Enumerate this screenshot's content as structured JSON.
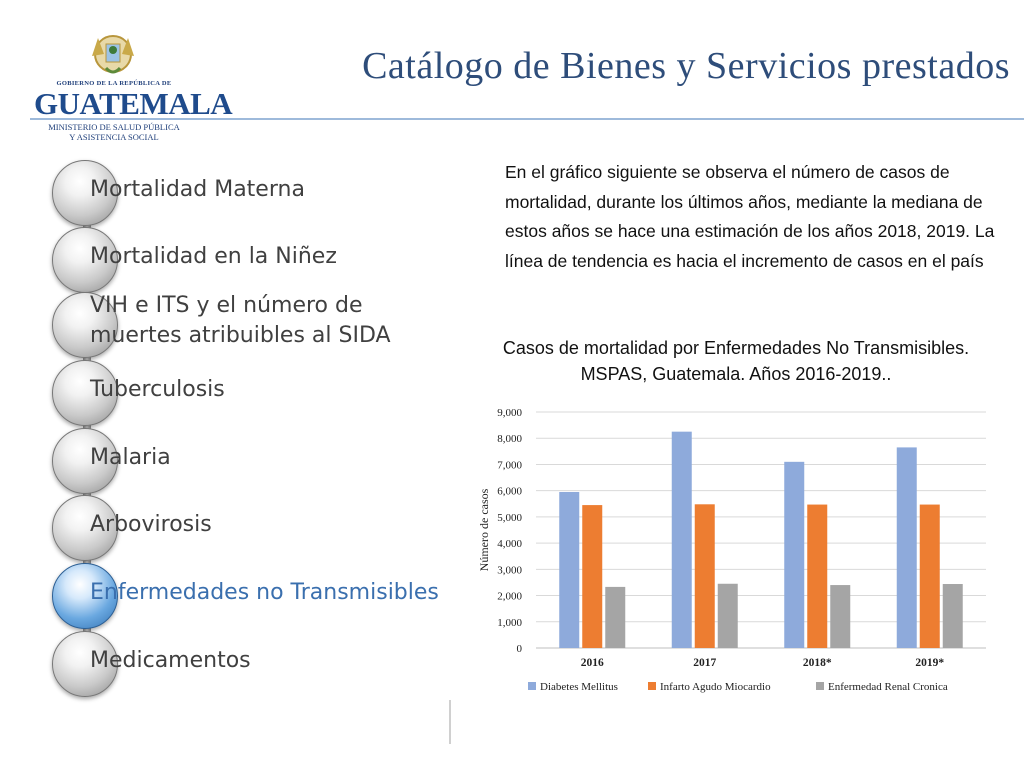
{
  "logo": {
    "government": "GOBIERNO DE LA REPÚBLICA DE",
    "country": "GUATEMALA",
    "ministry_line1": "MINISTERIO DE SALUD PÚBLICA",
    "ministry_line2": "Y ASISTENCIA SOCIAL",
    "seal_icon": "coat-of-arms-icon"
  },
  "title": "Catálogo de Bienes y Servicios prestados",
  "menu": {
    "items": [
      {
        "label": "Mortalidad Materna",
        "active": false
      },
      {
        "label": "Mortalidad en la Niñez",
        "active": false
      },
      {
        "label_line1": "VIH e ITS y el número de",
        "label_line2": "muertes atribuibles al SIDA",
        "active": false
      },
      {
        "label": "Tuberculosis",
        "active": false
      },
      {
        "label": "Malaria",
        "active": false
      },
      {
        "label": "Arbovirosis",
        "active": false
      },
      {
        "label": "Enfermedades no Transmisibles",
        "active": true
      },
      {
        "label": "Medicamentos",
        "active": false
      }
    ]
  },
  "description": "En el gráfico siguiente se observa el número de casos de mortalidad, durante los últimos años, mediante la mediana de estos años se hace una estimación de los años 2018, 2019. La línea de tendencia es hacia el incremento de casos en el país",
  "chart_title_line1": "Casos de mortalidad por Enfermedades No Transmisibles.",
  "chart_title_line2": "MSPAS, Guatemala. Años 2016-2019..",
  "colors": {
    "accent": "#4f81bd",
    "title": "#2e4d7a",
    "active_item": "#3a6fae"
  },
  "chart_data": {
    "type": "bar",
    "ylabel": "Número de casos",
    "ylim": [
      0,
      9000
    ],
    "yticks": [
      0,
      1000,
      2000,
      3000,
      4000,
      5000,
      6000,
      7000,
      8000,
      9000
    ],
    "ytick_labels": [
      "0",
      "1,000",
      "2,000",
      "3,000",
      "4,000",
      "5,000",
      "6,000",
      "7,000",
      "8,000",
      "9,000"
    ],
    "categories": [
      "2016",
      "2017",
      "2018*",
      "2019*"
    ],
    "grid": true,
    "legend_position": "bottom",
    "series": [
      {
        "name": "Diabetes Mellitus",
        "color": "#8eaadb",
        "values": [
          5950,
          8250,
          7100,
          7650
        ]
      },
      {
        "name": "Infarto Agudo Miocardio",
        "color": "#ed7d31",
        "values": [
          5450,
          5480,
          5470,
          5470
        ]
      },
      {
        "name": "Enfermedad Renal Cronica",
        "color": "#a5a5a5",
        "values": [
          2330,
          2450,
          2400,
          2440
        ]
      }
    ]
  }
}
